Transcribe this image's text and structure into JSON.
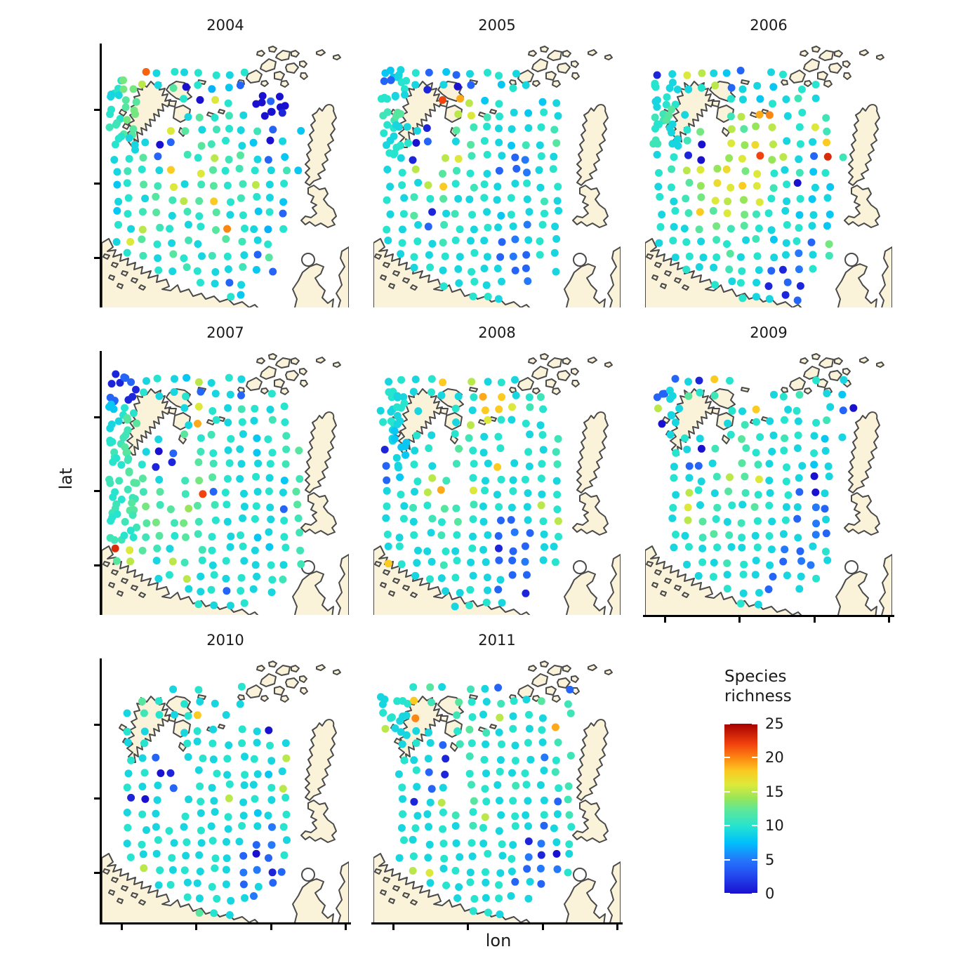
{
  "chart_data": {
    "type": "scatter",
    "title": "",
    "xlabel": "lon",
    "ylabel": "lat",
    "facet_titles": [
      "2004",
      "2005",
      "2006",
      "2007",
      "2008",
      "2009",
      "2010",
      "2011"
    ],
    "legend": {
      "title_line1": "Species",
      "title_line2": "richness",
      "range": [
        0,
        25
      ],
      "tick_values": [
        25,
        20,
        15,
        10,
        5,
        0
      ],
      "tick_labels": [
        "25",
        "20",
        "15",
        "10",
        "5",
        "0"
      ]
    },
    "colormap": {
      "stops": [
        [
          0,
          "#1A10D0"
        ],
        [
          3,
          "#2450F2"
        ],
        [
          5,
          "#2478FA"
        ],
        [
          7.5,
          "#00C0FC"
        ],
        [
          10,
          "#27E4CE"
        ],
        [
          12.5,
          "#63E794"
        ],
        [
          14,
          "#97E65A"
        ],
        [
          16,
          "#DCE93A"
        ],
        [
          18,
          "#FBCB22"
        ],
        [
          20,
          "#FC8612"
        ],
        [
          22,
          "#F2420D"
        ],
        [
          25,
          "#A50000"
        ]
      ]
    },
    "land_color": "#FAF3DA",
    "coast_color": "#4A4A4A",
    "dot_radius": 5.5,
    "value_encoding": "each grid char = survey station; a..z maps to species richness 0..25; uppercase letter = dense cluster of 3 overlapping stations of that richness; '.' = no station",
    "panels": [
      {
        "title": "2004",
        "grid": [
          "..vjkjkkjk......",
          "KNpjmakhie......",
          "JM...kaqk.AeA...",
          "KN...jmklj.Ab...",
          "LM..qmjlkjle.i..",
          "KJjae.mlkjiaj...",
          "jkme.lkplmjei...",
          "jlkjs.qmklkjli..",
          "ikmlqjlmklpjk...",
          "jkjmlpmsklkji...",
          "iklmjlkmjkike...",
          "kjplkjkmukjhk...",
          "jqmkjlj.mljk....",
          ".kljmkjlkjem....",
          "...kjlkjjlie....",
          "......kjej......",
          "........ki......"
        ]
      },
      {
        "title": "2005",
        "grid": [
          "IJkeiejkkj......",
          "EKjbjae.ikj.....",
          "KJ..wtpik..ij...",
          "LM...pqlkjikj...",
          "KJjb.mlkjjjkl...",
          "JKae.jmkjiljm...",
          "Kjb.pqlkjefkj...",
          "jkp.mlkjeefjk...",
          "jkjpsklkjjkjk...",
          "kjlkmjjkjkjlj...",
          "jkmbjlkjikjkj...",
          "kjjelkjkjjfkj...",
          "jkkjlkjjefjkj...",
          ".jkjkjkjefekj...",
          "..jkjjkjjee.j...",
          "....kjkjj.f.....",
          "......kkj......."
        ]
      },
      {
        "title": "2006",
        "grid": [
          "bjqpjie.jk......",
          "KJjkpejji.kk....",
          "JK...kjikjlj....",
          "LMj..lptujk.l...",
          "KJkn.pmop.kql...",
          "LJla.qorpjkjs...",
          "jkba.oqwopjexl..",
          "klpqornqkjlik...",
          "jkmorqsqlkaji...",
          "kjlnqpoqkjkij...",
          "jklsmqnlkjiji...",
          "kjjmnlmkjkkji...",
          "jkkjlkjlijken...",
          ".jkjkmjkjjfjl...",
          "..kjjlkjebfk....",
          "....kjkjbeb.....",
          "......kjjbe....."
        ]
      },
      {
        "title": "2007",
        "grid": [
          "BEjkjipjkj......",
          "EBkjjkejje.k....",
          "IK...jqkjlkjk...",
          "JM...jtkjkjlk...",
          "KL.j.mklkjikl...",
          "LMjae.lkjjiklm..",
          "KLkbb.mlkjjkl...",
          "LMmj.lnmkjkjil..",
          "KLlm.lwekjjkjm..",
          "LMnlmomlkjkjem..",
          "KLmnlnlkjjkjkl..",
          "LKlmkmlkjkijkl..",
          "xqmlj.lkjkjikl..",
          "mp.jplkjkjjkjl..",
          "...jkpjkjkjkl...",
          ".....jjkekjj....",
          "......kjjk......"
        ]
      },
      {
        "title": "2008",
        "grid": [
          "jkjks.pjkj......",
          "KJjkjjktsjkl....",
          "JKj..kjssqlk....",
          "KJ...jpqkjkj....",
          "JIkj.kljk.jkl...",
          "bIjk.mkjk.kjl...",
          "eJkj.lkjsjjkl...",
          "eikpl.kjkjkkj...",
          "jkjpt.qkjkjjk...",
          "kjlkmlljkjjpk...",
          "jkjlkmkjeejkp...",
          "kjkjlkjjefejk...",
          "jkjjkjkjbeejj...",
          "skjjlkjjeefjk...",
          "..jkjkjjjee.....",
          "....jjkje.b.....",
          ".....jkkj......."
        ]
      },
      {
        "title": "2009",
        "grid": [
          ".ejbsk.....k.j..",
          "EJmkl...jkl.ji..",
          "pJ...kjs.jk.jea.",
          "aj...jlkjkjkl...",
          ".jkj.kmkjlkjij..",
          ".kjal.lkjkjkj...",
          ".jeej.mljkjij...",
          ".kjjlpmqjkjaj...",
          ".jpkjmlkjkeaj...",
          ".kqjlkjmkjjfe...",
          ".jpmkjlkjkefj...",
          ".kjlmlkjkjjfe...",
          ".jkjkjjkjfejk...",
          "..jkjlkjjeffj...",
          "...jkjkjejjk....",
          ".....kjje.j.....",
          "......kj........"
        ]
      },
      {
        "title": "2010",
        "grid": [
          "....j.k..k......",
          "..mk.kjj.j......",
          ".jlkjks.j.......",
          ".kj..jkj.kja....",
          ".jk..kjkjkjkj...",
          ".kje.jkjkjkjp...",
          ".jkab.jkjkjij...",
          ".kjje.kjkjjkp...",
          ".baj.jkjpjkjk...",
          ".jkj.kjjkjijk...",
          ".kjjkjkjjkjfk...",
          ".jkkjkjkjjefj...",
          ".kjjkjjkjeaek...",
          "..pkjkjkjffbe...",
          "...jkjjkjeje....",
          ".....kjkjjf.....",
          "......mkj......."
        ]
      },
      {
        "title": "2011",
        "grid": [
          "..kmj.lje....e..",
          "JKsl.mkjlkjm.l..",
          "KJu..lkjpjkj.l..",
          "pJjj.kmljkjkt...",
          ".jkjelkjkjkjl...",
          ".kjjb.lkjkjfkl..",
          ".jkeb.kjkjkjl...",
          ".kjej.lkjlkjkl..",
          ".jbjp.mkjkjjel..",
          ".kjjklkpjkjkjl..",
          ".jkjkjlkjkjejk..",
          ".kjjkjkjkjbfjk..",
          ".jkjkjjkjkfbaj..",
          "..pqjkjkjjeffk..",
          "...jkjkjkeje....",
          ".....jkjkjj.....",
          "......kkj......."
        ]
      }
    ]
  }
}
